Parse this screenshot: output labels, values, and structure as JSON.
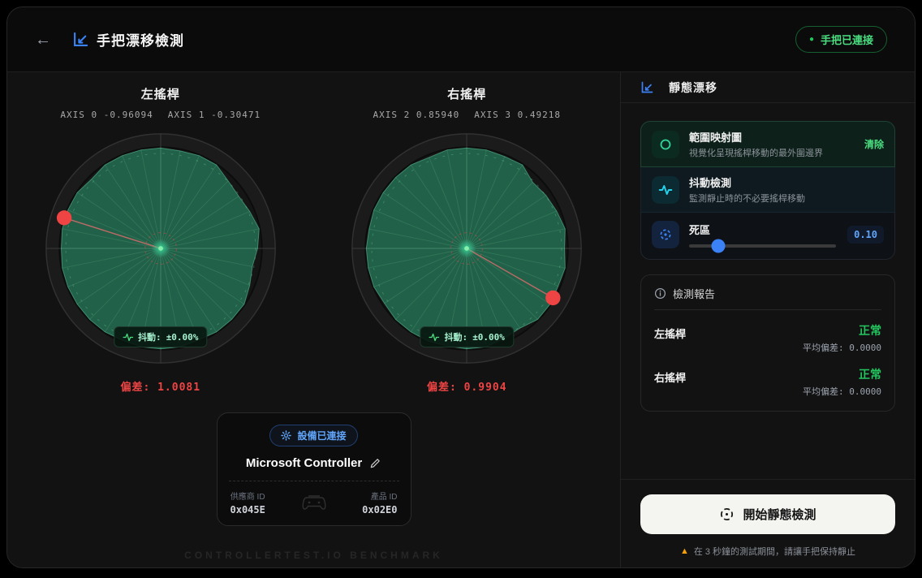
{
  "colors": {
    "accent_blue": "#3b82f6",
    "green": "#22c55e",
    "emerald": "#34d399",
    "red": "#ef4444",
    "cyan": "#22d3ee",
    "orange": "#f59e0b",
    "value_blue": "#60a5fa"
  },
  "header": {
    "back_icon": "←",
    "title_icon": "line-chart-icon",
    "title": "手把漂移檢測",
    "status_badge": {
      "dot": "●",
      "label": "手把已連接"
    }
  },
  "gauges": [
    {
      "title": "左搖桿",
      "axes": [
        {
          "label": "AXIS 0",
          "value": "-0.96094"
        },
        {
          "label": "AXIS 1",
          "value": "-0.30471"
        }
      ],
      "stick_x": -0.96094,
      "stick_y": -0.30471,
      "jitter_label": "抖動:",
      "jitter_value": "±0.00%",
      "deviation_label": "偏差:",
      "deviation_value": "1.0081",
      "range_map_radii": [
        0.965,
        0.93,
        0.96,
        1,
        1,
        1,
        0.985,
        1,
        1,
        1,
        0.99,
        1,
        1,
        1,
        1,
        1,
        0.99,
        1,
        1,
        1,
        0.975,
        1,
        1,
        1,
        1,
        0.99,
        1,
        1,
        0.95,
        0.935,
        0.96,
        1
      ]
    },
    {
      "title": "右搖桿",
      "axes": [
        {
          "label": "AXIS 2",
          "value": "0.85940"
        },
        {
          "label": "AXIS 3",
          "value": "0.49218"
        }
      ],
      "stick_x": 0.8594,
      "stick_y": 0.49218,
      "jitter_label": "抖動:",
      "jitter_value": "±0.00%",
      "deviation_label": "偏差:",
      "deviation_value": "0.9904",
      "range_map_radii": [
        0.975,
        1,
        0.985,
        1,
        1,
        0.955,
        0.97,
        1,
        1,
        0.99,
        1,
        1,
        1,
        0.985,
        1,
        1,
        1,
        0.99,
        1,
        1,
        1,
        1,
        0.98,
        1,
        1,
        1,
        0.99,
        1,
        0.93,
        0.95,
        0.97,
        1
      ]
    }
  ],
  "device": {
    "badge_icon": "gear-icon",
    "badge_label": "設備已連接",
    "name": "Microsoft Controller",
    "edit_icon": "pencil-icon",
    "center_icon": "gamepad-icon",
    "vendor_label": "供應商 ID",
    "vendor_id": "0x045E",
    "product_label": "產品 ID",
    "product_id": "0x02E0"
  },
  "watermark": "CONTROLLERTEST.IO BENCHMARK",
  "sidebar": {
    "title_icon": "line-chart-icon",
    "title": "靜態漂移",
    "options": [
      {
        "icon": "circle-icon",
        "title": "範圍映射圖",
        "desc": "視覺化呈現搖桿移動的最外圍邊界",
        "action": "清除"
      },
      {
        "icon": "waveform-icon",
        "title": "抖動檢測",
        "desc": "監測靜止時的不必要搖桿移動"
      },
      {
        "icon": "crosshair-icon",
        "title": "死區",
        "value": "0.10",
        "slider_pct": 20
      }
    ],
    "report": {
      "icon": "info-icon",
      "title": "檢測報告",
      "rows": [
        {
          "label": "左搖桿",
          "status": "正常",
          "detail": "平均偏差: 0.0000"
        },
        {
          "label": "右搖桿",
          "status": "正常",
          "detail": "平均偏差: 0.0000"
        }
      ]
    },
    "start_button": {
      "icon": "crosshair-icon",
      "label": "開始靜態檢測"
    },
    "warning": {
      "icon": "warning-icon",
      "symbol": "▲",
      "text": "在 3 秒鐘的測試期間，請讓手把保持靜止"
    }
  }
}
